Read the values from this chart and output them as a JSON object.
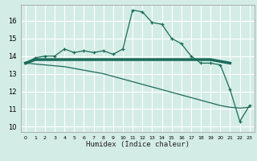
{
  "xlabel": "Humidex (Indice chaleur)",
  "bg_color": "#d4ece6",
  "grid_color": "#ffffff",
  "line_color": "#1a6b5a",
  "xlim": [
    -0.5,
    23.5
  ],
  "ylim": [
    9.7,
    16.9
  ],
  "xticks": [
    0,
    1,
    2,
    3,
    4,
    5,
    6,
    7,
    8,
    9,
    10,
    11,
    12,
    13,
    14,
    15,
    16,
    17,
    18,
    19,
    20,
    21,
    22,
    23
  ],
  "yticks": [
    10,
    11,
    12,
    13,
    14,
    15,
    16
  ],
  "line1_x": [
    0,
    1,
    2,
    3,
    4,
    5,
    6,
    7,
    8,
    9,
    10,
    11,
    12,
    13,
    14,
    15,
    16,
    17,
    18,
    19,
    20,
    21,
    22,
    23
  ],
  "line1_y": [
    13.6,
    13.9,
    14.0,
    14.0,
    14.4,
    14.2,
    14.3,
    14.2,
    14.3,
    14.1,
    14.4,
    16.6,
    16.5,
    15.9,
    15.8,
    15.0,
    14.7,
    14.0,
    13.6,
    13.6,
    13.5,
    12.1,
    10.3,
    11.2
  ],
  "line2_x": [
    0,
    1,
    2,
    3,
    4,
    5,
    6,
    7,
    8,
    9,
    10,
    11,
    12,
    13,
    14,
    15,
    16,
    17,
    18,
    19,
    20,
    21
  ],
  "line2_y": [
    13.6,
    13.8,
    13.8,
    13.8,
    13.8,
    13.8,
    13.8,
    13.8,
    13.8,
    13.8,
    13.8,
    13.8,
    13.8,
    13.8,
    13.8,
    13.8,
    13.8,
    13.8,
    13.8,
    13.8,
    13.7,
    13.6
  ],
  "line3_x": [
    0,
    1,
    2,
    3,
    4,
    5,
    6,
    7,
    8,
    9,
    10,
    11,
    12,
    13,
    14,
    15,
    16,
    17,
    18,
    19,
    20,
    21,
    22,
    23
  ],
  "line3_y": [
    13.6,
    13.55,
    13.5,
    13.45,
    13.4,
    13.3,
    13.2,
    13.1,
    13.0,
    12.85,
    12.7,
    12.55,
    12.4,
    12.25,
    12.1,
    11.95,
    11.8,
    11.65,
    11.5,
    11.35,
    11.2,
    11.1,
    11.05,
    11.1
  ]
}
